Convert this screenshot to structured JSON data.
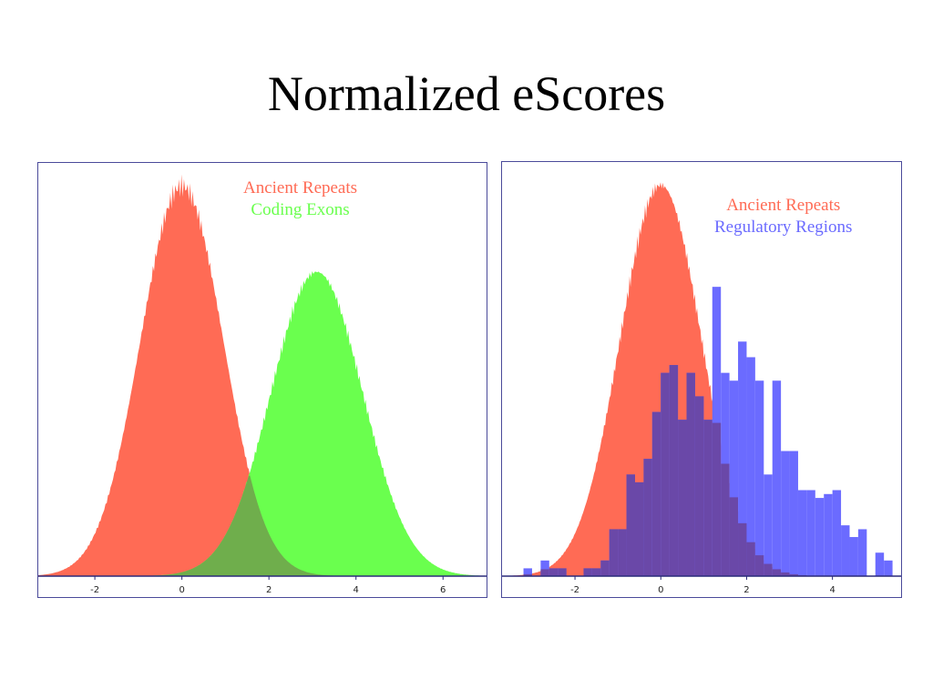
{
  "slide": {
    "title": "Normalized eScores"
  },
  "colors": {
    "ancient_repeats": "#ff6b55",
    "coding_exons": "#6aff4e",
    "overlap_green": "#6fae4c",
    "regulatory_regions": "#6b6bff",
    "overlap_purple": "#6a48a8",
    "axis": "#2a2a7a"
  },
  "chart_data": [
    {
      "type": "area",
      "title": "",
      "xlabel": "",
      "ylabel": "",
      "xlim": [
        -3.3,
        7.0
      ],
      "ylim": [
        0,
        1.05
      ],
      "xticks": [
        -2,
        0,
        2,
        4,
        6
      ],
      "grid": false,
      "legend": "top-center",
      "series": [
        {
          "name": "Ancient Repeats",
          "mean": 0.0,
          "sd": 0.95,
          "peak": 1.0,
          "color": "#ff6b55"
        },
        {
          "name": "Coding Exons",
          "mean": 3.1,
          "sd": 1.05,
          "peak": 0.78,
          "color": "#6aff4e"
        }
      ]
    },
    {
      "type": "bar",
      "title": "",
      "xlabel": "",
      "ylabel": "",
      "xlim": [
        -3.7,
        5.6
      ],
      "ylim": [
        0,
        1.05
      ],
      "xticks": [
        -2,
        0,
        2,
        4
      ],
      "grid": false,
      "legend": "top-right",
      "series": [
        {
          "name": "Ancient Repeats",
          "kind": "area",
          "mean": 0.0,
          "sd": 0.95,
          "peak": 1.0,
          "color": "#ff6b55"
        },
        {
          "name": "Regulatory Regions",
          "kind": "histogram",
          "color": "#6b6bff",
          "bin_width": 0.2,
          "x": [
            -3.2,
            -3.0,
            -2.8,
            -2.6,
            -2.4,
            -2.2,
            -2.0,
            -1.8,
            -1.6,
            -1.4,
            -1.2,
            -1.0,
            -0.8,
            -0.6,
            -0.4,
            -0.2,
            0.0,
            0.2,
            0.4,
            0.6,
            0.8,
            1.0,
            1.2,
            1.4,
            1.6,
            1.8,
            2.0,
            2.2,
            2.4,
            2.6,
            2.8,
            3.0,
            3.2,
            3.4,
            3.6,
            3.8,
            4.0,
            4.2,
            4.4,
            4.6,
            4.8,
            5.0,
            5.2
          ],
          "values": [
            0.02,
            0.0,
            0.04,
            0.02,
            0.02,
            0.0,
            0.0,
            0.02,
            0.02,
            0.04,
            0.12,
            0.12,
            0.26,
            0.24,
            0.3,
            0.42,
            0.52,
            0.54,
            0.4,
            0.52,
            0.46,
            0.4,
            0.74,
            0.52,
            0.5,
            0.6,
            0.56,
            0.5,
            0.26,
            0.5,
            0.32,
            0.32,
            0.22,
            0.22,
            0.2,
            0.21,
            0.22,
            0.13,
            0.1,
            0.12,
            0.0,
            0.06,
            0.04
          ]
        }
      ]
    }
  ],
  "legend_left": {
    "line1": "Ancient Repeats",
    "line2": "Coding Exons"
  },
  "legend_right": {
    "line1": "Ancient Repeats",
    "line2": "Regulatory Regions"
  }
}
